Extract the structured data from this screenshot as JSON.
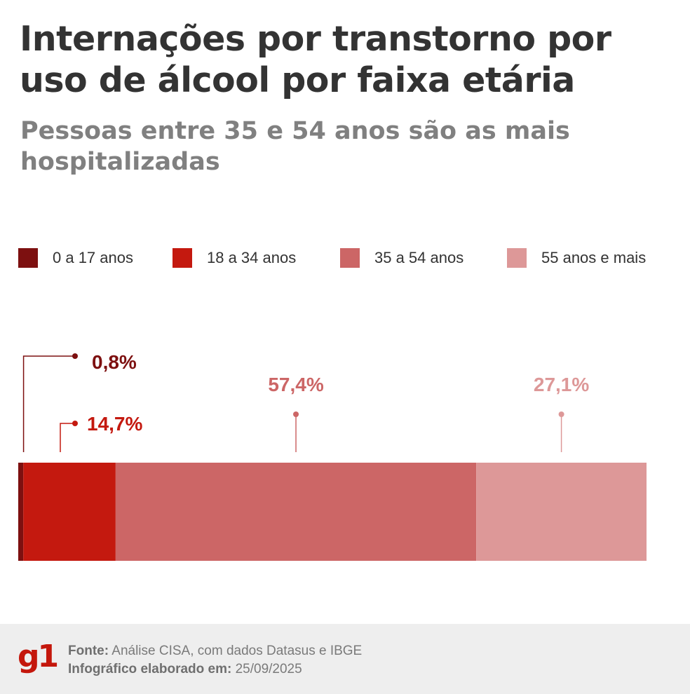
{
  "title": "Internações por transtorno por uso de álcool por faixa etária",
  "subtitle": "Pessoas entre 35 e 54 anos são as mais hospitalizadas",
  "legend": [
    {
      "label": "0 a 17 anos",
      "color": "#7d1010"
    },
    {
      "label": "18 a 34 anos",
      "color": "#c4190f"
    },
    {
      "label": "35 a 54 anos",
      "color": "#cc6666"
    },
    {
      "label": "55 anos e mais",
      "color": "#dd9898"
    }
  ],
  "chart_data": {
    "type": "bar",
    "stacked": true,
    "orientation": "horizontal",
    "categories": [
      "0 a 17 anos",
      "18 a 34 anos",
      "35 a 54 anos",
      "55 anos e mais"
    ],
    "values": [
      0.8,
      14.7,
      57.4,
      27.1
    ],
    "value_labels": [
      "0,8%",
      "14,7%",
      "57,4%",
      "27,1%"
    ],
    "colors": [
      "#7d1010",
      "#c4190f",
      "#cc6666",
      "#dd9898"
    ],
    "label_colors": [
      "#7d1010",
      "#c4190f",
      "#cc6666",
      "#dd9898"
    ],
    "unit": "%"
  },
  "footer": {
    "logo": "g1",
    "source_label": "Fonte:",
    "source_text": "Análise CISA, com dados Datasus e IBGE",
    "date_label": "Infográfico elaborado em:",
    "date_text": "25/09/2025"
  }
}
